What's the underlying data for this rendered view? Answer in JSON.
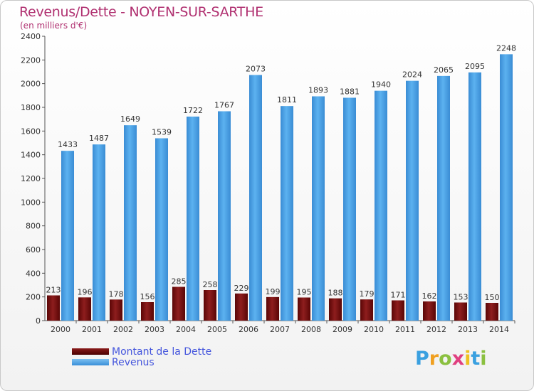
{
  "title": "Revenus/Dette - NOYEN-SUR-SARTHE",
  "subtitle": "(en milliers d'€)",
  "logo": {
    "text": "Proxiti",
    "letters": [
      {
        "ch": "P",
        "color": "#3aa0e0"
      },
      {
        "ch": "r",
        "color": "#f0a020"
      },
      {
        "ch": "o",
        "color": "#8bc040"
      },
      {
        "ch": "x",
        "color": "#e04080"
      },
      {
        "ch": "i",
        "color": "#f0c020"
      },
      {
        "ch": "t",
        "color": "#3aa0e0"
      },
      {
        "ch": "i",
        "color": "#8bc040"
      }
    ]
  },
  "colors": {
    "debt": "#7a0f0f",
    "revenue": "#4aa3e8",
    "axis": "#555555",
    "grid": "#d8d8d8"
  },
  "chart_data": {
    "type": "bar",
    "categories": [
      "2000",
      "2001",
      "2002",
      "2003",
      "2004",
      "2005",
      "2006",
      "2007",
      "2008",
      "2009",
      "2010",
      "2011",
      "2012",
      "2013",
      "2014"
    ],
    "series": [
      {
        "name": "Montant de la Dette",
        "values": [
          213,
          196,
          178,
          156,
          285,
          258,
          229,
          199,
          195,
          188,
          179,
          171,
          162,
          153,
          150
        ]
      },
      {
        "name": "Revenus",
        "values": [
          1433,
          1487,
          1649,
          1539,
          1722,
          1767,
          2073,
          1811,
          1893,
          1881,
          1940,
          2024,
          2065,
          2095,
          2248
        ]
      }
    ],
    "yticks": [
      0,
      200,
      400,
      600,
      800,
      1000,
      1200,
      1400,
      1600,
      1800,
      2000,
      2200,
      2400
    ],
    "ylim": [
      0,
      2400
    ],
    "legend_position": "bottom-left",
    "grid": false
  }
}
